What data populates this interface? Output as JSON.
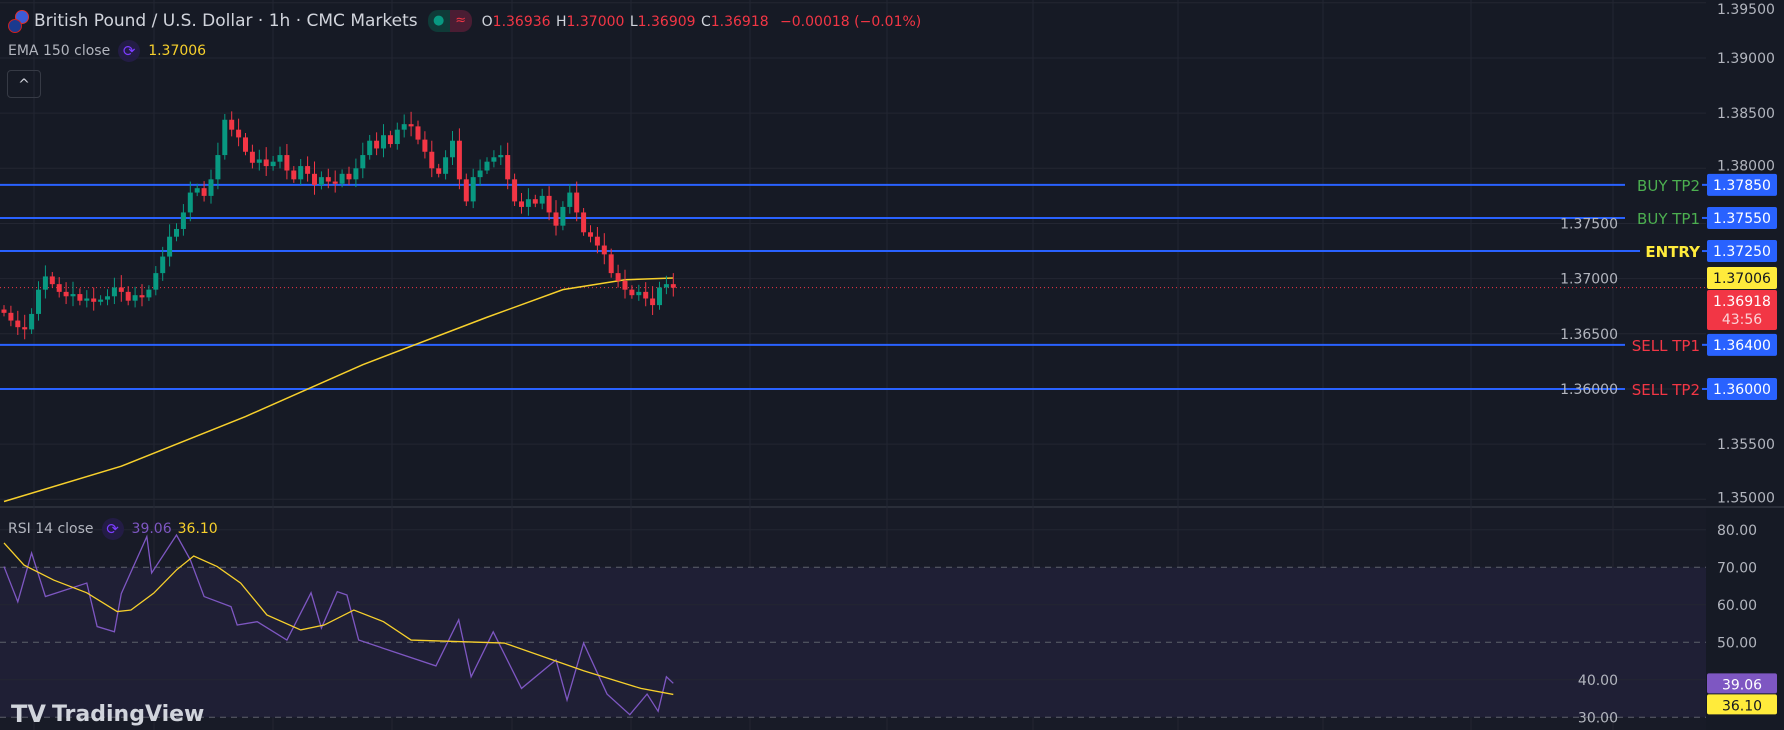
{
  "header": {
    "symbol_title": "British Pound / U.S. Dollar · 1h · CMC Markets",
    "ohlc": {
      "o_label": "O",
      "o": "1.36936",
      "h_label": "H",
      "h": "1.37000",
      "l_label": "L",
      "l": "1.36909",
      "c_label": "C",
      "c": "1.36918",
      "change": "−0.00018 (−0.01%)"
    },
    "status_icons": [
      "market-open-dot-icon",
      "delayed-data-icon"
    ]
  },
  "ema_legend": {
    "label": "EMA 150 close",
    "value": "1.37006"
  },
  "rsi_legend": {
    "label": "RSI 14 close",
    "rsi_value": "39.06",
    "ma_value": "36.10"
  },
  "collapse_button": "^",
  "logo": "TradingView",
  "colors": {
    "background": "#161a25",
    "grid": "#232632",
    "up": "#089981",
    "down": "#f23645",
    "level_line": "#2962ff",
    "ema": "#f7d02c",
    "rsi": "#7e57c2",
    "rsi_ma": "#f7d02c",
    "buy_label": "#4caf50",
    "entry_label": "#ffeb3b",
    "sell_label": "#f23645"
  },
  "chart_data": [
    {
      "type": "candlestick",
      "title": "British Pound / U.S. Dollar · 1h · CMC Markets",
      "ylim": [
        1.3485,
        1.395
      ],
      "yticks": [
        "1.39500",
        "1.39000",
        "1.38500",
        "1.38000",
        "1.37500",
        "1.37000",
        "1.36500",
        "1.36000",
        "1.35500",
        "1.35000"
      ],
      "grid": true,
      "close": [
        1.3669,
        1.3662,
        1.3656,
        1.3654,
        1.3668,
        1.369,
        1.3702,
        1.3695,
        1.3688,
        1.3684,
        1.3686,
        1.368,
        1.3682,
        1.3679,
        1.3681,
        1.3684,
        1.3692,
        1.3688,
        1.368,
        1.3685,
        1.3683,
        1.369,
        1.3705,
        1.372,
        1.3738,
        1.3745,
        1.376,
        1.3778,
        1.3782,
        1.3775,
        1.379,
        1.3812,
        1.3844,
        1.3835,
        1.3828,
        1.3815,
        1.3805,
        1.3808,
        1.3802,
        1.3806,
        1.3812,
        1.3798,
        1.379,
        1.3802,
        1.3795,
        1.3785,
        1.3792,
        1.3788,
        1.3786,
        1.3795,
        1.379,
        1.38,
        1.3812,
        1.3825,
        1.3818,
        1.383,
        1.3822,
        1.3835,
        1.384,
        1.3838,
        1.3826,
        1.3815,
        1.38,
        1.3795,
        1.381,
        1.3825,
        1.379,
        1.377,
        1.3792,
        1.3798,
        1.3806,
        1.381,
        1.3812,
        1.379,
        1.377,
        1.3765,
        1.3772,
        1.3768,
        1.3775,
        1.376,
        1.3748,
        1.3765,
        1.3778,
        1.376,
        1.3742,
        1.3738,
        1.373,
        1.3722,
        1.3705,
        1.3698,
        1.369,
        1.3685,
        1.3688,
        1.3682,
        1.3676,
        1.3692,
        1.3695,
        1.36918
      ],
      "first_open": 1.3672,
      "ema150": [
        [
          0,
          1.3498
        ],
        [
          17,
          1.353
        ],
        [
          35,
          1.3575
        ],
        [
          52,
          1.3622
        ],
        [
          70,
          1.3665
        ],
        [
          81,
          1.369
        ],
        [
          90,
          1.3699
        ],
        [
          97,
          1.37006
        ]
      ],
      "levels": [
        {
          "label": "BUY TP2",
          "price": "1.37850",
          "kind": "buy"
        },
        {
          "label": "BUY TP1",
          "price": "1.37550",
          "kind": "buy"
        },
        {
          "label": "ENTRY",
          "price": "1.37250",
          "kind": "entry"
        },
        {
          "label": "SELL TP1",
          "price": "1.36400",
          "kind": "sell"
        },
        {
          "label": "SELL TP2",
          "price": "1.36000",
          "kind": "sell"
        }
      ],
      "ema_price_label": "1.37006",
      "last_price": "1.36918",
      "countdown": "43:56"
    },
    {
      "type": "line",
      "title": "RSI 14 close",
      "ylim": [
        28,
        85
      ],
      "yticks": [
        "80.00",
        "70.00",
        "60.00",
        "50.00",
        "40.00",
        "30.00"
      ],
      "band": [
        30,
        70
      ],
      "rsi": [
        [
          0,
          70.2
        ],
        [
          2,
          60.8
        ],
        [
          4,
          73.8
        ],
        [
          6,
          62.2
        ],
        [
          12,
          65.8
        ],
        [
          13.5,
          54.2
        ],
        [
          16,
          52.8
        ],
        [
          17,
          63
        ],
        [
          20.7,
          78.2
        ],
        [
          21.4,
          68.5
        ],
        [
          25,
          78.6
        ],
        [
          27,
          72
        ],
        [
          29,
          62.2
        ],
        [
          32.9,
          59.5
        ],
        [
          33.8,
          54.6
        ],
        [
          36.7,
          55.5
        ],
        [
          41,
          50.6
        ],
        [
          44.5,
          63.2
        ],
        [
          46,
          53.8
        ],
        [
          48.3,
          63.5
        ],
        [
          49.7,
          62.6
        ],
        [
          51.4,
          50.6
        ],
        [
          62.6,
          43.7
        ],
        [
          65.9,
          56
        ],
        [
          67.7,
          40.8
        ],
        [
          70.9,
          52.8
        ],
        [
          75,
          37.7
        ],
        [
          80,
          45.3
        ],
        [
          81.6,
          34.6
        ],
        [
          84,
          49.8
        ],
        [
          87.4,
          36.2
        ],
        [
          90.7,
          30.7
        ],
        [
          93.2,
          36.2
        ],
        [
          94.8,
          31.6
        ],
        [
          96,
          40.8
        ],
        [
          97,
          39.06
        ]
      ],
      "rsi_ma": [
        [
          0,
          76.5
        ],
        [
          2.9,
          70.6
        ],
        [
          7.2,
          66.6
        ],
        [
          12,
          63.2
        ],
        [
          16.4,
          58.2
        ],
        [
          18.4,
          58.6
        ],
        [
          21.7,
          63.1
        ],
        [
          25,
          69.3
        ],
        [
          27.5,
          73
        ],
        [
          30.9,
          70.2
        ],
        [
          34.3,
          65.8
        ],
        [
          38.1,
          57.3
        ],
        [
          43,
          53.3
        ],
        [
          46.4,
          54.6
        ],
        [
          50.7,
          58.6
        ],
        [
          55,
          55.5
        ],
        [
          59,
          50.6
        ],
        [
          72.5,
          49.8
        ],
        [
          84,
          42.4
        ],
        [
          92.3,
          37.7
        ],
        [
          97,
          36.1
        ]
      ],
      "rsi_label": "39.06",
      "ma_label": "36.10"
    }
  ]
}
